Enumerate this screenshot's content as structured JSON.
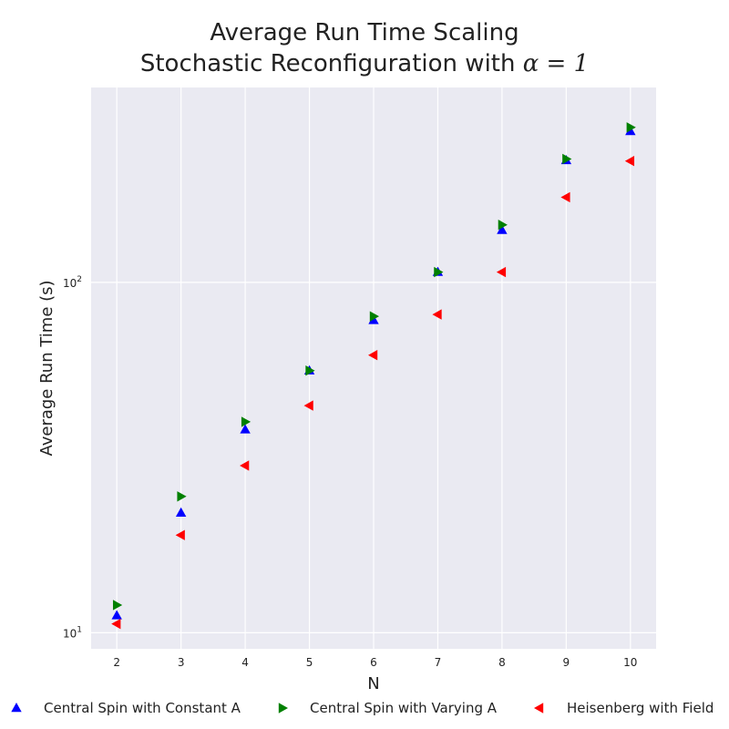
{
  "chart_data": {
    "type": "scatter",
    "title_line1": "Average Run Time Scaling",
    "title_line2_text": "Stochastic Reconfiguration with ",
    "title_line2_math": "α = 1",
    "xlabel": "N",
    "ylabel": "Average Run Time (s)",
    "y_scale": "log",
    "xlim": [
      1.6,
      10.4
    ],
    "ylim": [
      9.0,
      360.0
    ],
    "x_ticks": [
      2,
      3,
      4,
      5,
      6,
      7,
      8,
      9,
      10
    ],
    "y_ticks": [
      {
        "value": 10,
        "base": "10",
        "exp": "1"
      },
      {
        "value": 100,
        "base": "10",
        "exp": "2"
      }
    ],
    "grid": true,
    "legend_placement": "bottom",
    "background": "#eaeaf2",
    "series": [
      {
        "name": "Central Spin with Constant A",
        "marker": "triangle-up",
        "color": "#0000ff",
        "x": [
          2,
          3,
          4,
          5,
          6,
          7,
          8,
          9,
          10
        ],
        "y": [
          11.2,
          22.0,
          38.0,
          56.0,
          78.0,
          107.0,
          141.0,
          223.0,
          270.0
        ]
      },
      {
        "name": "Central Spin with Varying A",
        "marker": "triangle-right",
        "color": "#008000",
        "x": [
          2,
          3,
          4,
          5,
          6,
          7,
          8,
          9,
          10
        ],
        "y": [
          12.0,
          24.5,
          40.0,
          56.0,
          80.0,
          107.0,
          146.0,
          225.0,
          277.0
        ]
      },
      {
        "name": "Heisenberg with Field",
        "marker": "triangle-left",
        "color": "#ff0000",
        "x": [
          2,
          3,
          4,
          5,
          6,
          7,
          8,
          9,
          10
        ],
        "y": [
          10.6,
          19.0,
          30.0,
          44.5,
          62.0,
          81.0,
          107.0,
          175.0,
          222.0
        ]
      }
    ]
  }
}
